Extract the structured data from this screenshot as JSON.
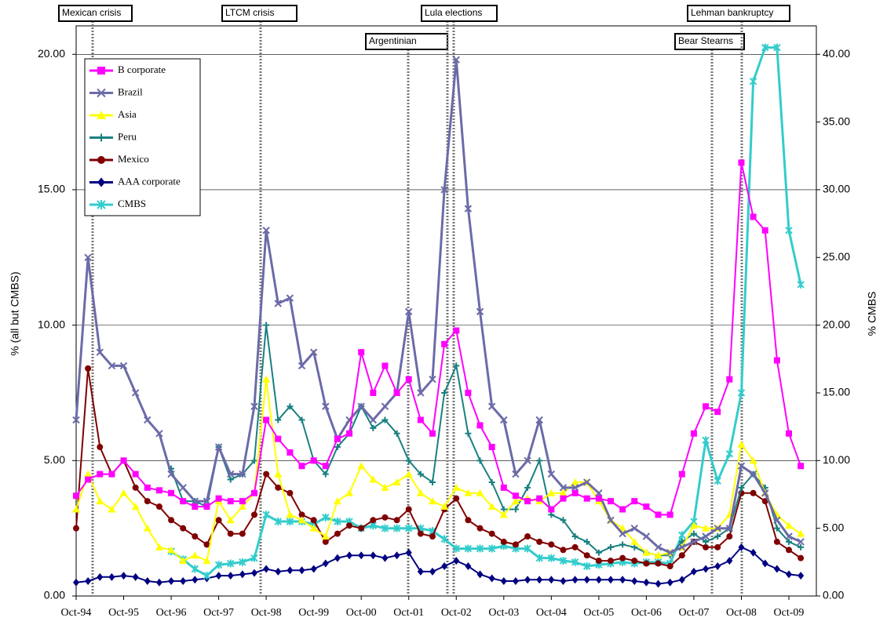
{
  "chart_data": {
    "type": "line",
    "ylabel": "% (all but CMBS)",
    "y2label": "% CMBS",
    "categories": [
      "Oct-94",
      null,
      null,
      null,
      "Oct-95",
      null,
      null,
      null,
      "Oct-96",
      null,
      null,
      null,
      "Oct-97",
      null,
      null,
      null,
      "Oct-98",
      null,
      null,
      null,
      "Oct-99",
      null,
      null,
      null,
      "Oct-00",
      null,
      null,
      null,
      "Oct-01",
      null,
      null,
      null,
      "Oct-02",
      null,
      null,
      null,
      "Oct-03",
      null,
      null,
      null,
      "Oct-04",
      null,
      null,
      null,
      "Oct-05",
      null,
      null,
      null,
      "Oct-06",
      null,
      null,
      null,
      "Oct-07",
      null,
      null,
      null,
      "Oct-08",
      null,
      null,
      null,
      "Oct-09",
      null
    ],
    "ylim": [
      0,
      21.05
    ],
    "yticks": [
      {
        "value": 0,
        "label": "0.00"
      },
      {
        "value": 5,
        "label": "5.00"
      },
      {
        "value": 10,
        "label": "10.00"
      },
      {
        "value": 15,
        "label": "15.00"
      },
      {
        "value": 20,
        "label": "20.00"
      }
    ],
    "y2lim": [
      0,
      42.1
    ],
    "y2ticks": [
      {
        "value": 0,
        "label": "0.00"
      },
      {
        "value": 5,
        "label": "5.00"
      },
      {
        "value": 10,
        "label": "10.00"
      },
      {
        "value": 15,
        "label": "15.00"
      },
      {
        "value": 20,
        "label": "20.00"
      },
      {
        "value": 25,
        "label": "25.00"
      },
      {
        "value": 30,
        "label": "30.00"
      },
      {
        "value": 35,
        "label": "35.00"
      },
      {
        "value": 40,
        "label": "40.00"
      }
    ],
    "grid": true,
    "legend": "upper left",
    "annotations": [
      "Mexican crisis",
      "LTCM crisis",
      "Argentinian",
      "Lula elections",
      "Bear Stearns",
      "Lehman bankruptcy"
    ],
    "series": [
      {
        "name": "B corporate",
        "color": "#ff00ff",
        "marker": "square",
        "values": [
          3.7,
          4.3,
          4.5,
          4.5,
          5.0,
          4.5,
          4.0,
          3.9,
          3.8,
          3.5,
          3.3,
          3.3,
          3.6,
          3.5,
          3.5,
          3.8,
          6.5,
          5.8,
          5.3,
          4.8,
          5.0,
          4.8,
          5.8,
          6.0,
          9.0,
          7.5,
          8.5,
          7.5,
          8.0,
          6.5,
          6.0,
          9.3,
          9.8,
          7.5,
          6.3,
          5.5,
          4.0,
          3.7,
          3.5,
          3.6,
          3.2,
          3.6,
          3.8,
          3.6,
          3.6,
          3.5,
          3.2,
          3.5,
          3.3,
          3.0,
          3.0,
          4.5,
          6.0,
          7.0,
          6.8,
          8.0,
          16.0,
          14.0,
          13.5,
          8.7,
          6.0,
          4.8
        ]
      },
      {
        "name": "Brazil",
        "color": "#6b6ba8",
        "marker": "x",
        "values": [
          6.5,
          12.5,
          9.0,
          8.5,
          8.5,
          7.5,
          6.5,
          6.0,
          4.5,
          4.0,
          3.5,
          3.5,
          5.5,
          4.5,
          4.5,
          7.0,
          13.5,
          10.8,
          11.0,
          8.5,
          9.0,
          7.0,
          5.8,
          6.5,
          7.0,
          6.5,
          7.0,
          7.5,
          10.5,
          7.5,
          8.0,
          15.0,
          19.8,
          14.3,
          10.5,
          7.0,
          6.5,
          4.5,
          5.0,
          6.5,
          4.5,
          4.0,
          4.0,
          4.2,
          3.8,
          2.8,
          2.3,
          2.5,
          2.2,
          1.8,
          1.6,
          1.8,
          2.0,
          2.2,
          2.5,
          2.5,
          4.8,
          4.5,
          3.8,
          2.8,
          2.2,
          2.0
        ]
      },
      {
        "name": "Asia",
        "color": "#ffff00",
        "marker": "triangle",
        "values": [
          3.2,
          4.5,
          3.5,
          3.2,
          3.8,
          3.3,
          2.5,
          1.8,
          1.7,
          1.3,
          1.5,
          1.3,
          3.5,
          2.8,
          3.3,
          3.8,
          8.0,
          4.5,
          3.0,
          2.8,
          2.5,
          2.2,
          3.5,
          3.8,
          4.8,
          4.3,
          4.0,
          4.2,
          4.5,
          3.8,
          3.5,
          3.3,
          4.0,
          3.8,
          3.8,
          3.3,
          3.0,
          3.5,
          3.6,
          3.5,
          3.8,
          3.8,
          4.2,
          4.2,
          3.5,
          2.8,
          2.5,
          2.0,
          1.6,
          1.5,
          1.6,
          1.8,
          2.6,
          2.5,
          2.5,
          3.0,
          5.6,
          5.0,
          3.8,
          3.0,
          2.6,
          2.3
        ]
      },
      {
        "name": "Peru",
        "color": "#1a8080",
        "marker": "plus",
        "values": [
          null,
          null,
          null,
          null,
          null,
          null,
          null,
          null,
          4.7,
          3.5,
          3.5,
          3.3,
          5.5,
          4.3,
          4.5,
          5.0,
          10.0,
          6.5,
          7.0,
          6.5,
          5.0,
          4.5,
          5.5,
          6.0,
          7.0,
          6.2,
          6.5,
          6.0,
          5.0,
          4.5,
          4.2,
          7.5,
          8.5,
          6.0,
          5.0,
          4.2,
          3.2,
          3.2,
          4.0,
          5.0,
          3.0,
          2.8,
          2.2,
          2.0,
          1.6,
          1.8,
          1.9,
          1.8,
          1.6,
          1.5,
          1.5,
          2.0,
          2.3,
          2.0,
          2.2,
          2.5,
          4.0,
          4.5,
          4.0,
          2.5,
          2.0,
          1.8
        ]
      },
      {
        "name": "Mexico",
        "color": "#800000",
        "marker": "circle",
        "values": [
          2.5,
          8.4,
          5.5,
          4.5,
          5.0,
          4.0,
          3.5,
          3.3,
          2.8,
          2.5,
          2.2,
          1.9,
          2.8,
          2.3,
          2.3,
          3.0,
          4.5,
          4.0,
          3.8,
          3.0,
          2.8,
          2.0,
          2.3,
          2.6,
          2.5,
          2.8,
          2.9,
          2.8,
          3.2,
          2.3,
          2.2,
          3.2,
          3.6,
          2.8,
          2.5,
          2.3,
          2.0,
          1.9,
          2.2,
          2.0,
          1.9,
          1.7,
          1.8,
          1.5,
          1.3,
          1.3,
          1.4,
          1.3,
          1.2,
          1.2,
          1.1,
          1.5,
          2.0,
          1.8,
          1.8,
          2.2,
          3.8,
          3.8,
          3.5,
          2.0,
          1.7,
          1.4
        ]
      },
      {
        "name": "AAA corporate",
        "color": "#000080",
        "marker": "diamond",
        "values": [
          0.5,
          0.55,
          0.7,
          0.7,
          0.75,
          0.7,
          0.55,
          0.5,
          0.55,
          0.55,
          0.6,
          0.65,
          0.75,
          0.75,
          0.8,
          0.85,
          1.0,
          0.9,
          0.95,
          0.95,
          1.0,
          1.2,
          1.4,
          1.5,
          1.5,
          1.5,
          1.4,
          1.5,
          1.6,
          0.9,
          0.9,
          1.1,
          1.3,
          1.1,
          0.8,
          0.65,
          0.55,
          0.55,
          0.6,
          0.6,
          0.6,
          0.55,
          0.6,
          0.6,
          0.6,
          0.6,
          0.6,
          0.55,
          0.5,
          0.45,
          0.5,
          0.6,
          0.9,
          1.0,
          1.1,
          1.3,
          1.8,
          1.6,
          1.2,
          1.0,
          0.8,
          0.75
        ]
      },
      {
        "name": "CMBS",
        "color": "#33cccc",
        "marker": "asterisk",
        "axis": "y2",
        "values": [
          null,
          null,
          null,
          null,
          null,
          null,
          null,
          null,
          3.3,
          2.7,
          2.0,
          1.5,
          2.3,
          2.4,
          2.5,
          2.8,
          6.0,
          5.5,
          5.5,
          5.5,
          5.3,
          5.8,
          5.5,
          5.5,
          5.0,
          5.2,
          5.0,
          5.0,
          5.0,
          5.0,
          4.8,
          4.2,
          3.5,
          3.5,
          3.5,
          3.5,
          3.7,
          3.5,
          3.5,
          2.8,
          2.8,
          2.6,
          2.5,
          2.2,
          2.3,
          2.4,
          2.5,
          2.4,
          2.5,
          2.5,
          2.4,
          4.5,
          5.5,
          11.5,
          8.5,
          10.5,
          15.0,
          38.0,
          40.5,
          40.5,
          27.0,
          23.0
        ]
      }
    ]
  }
}
